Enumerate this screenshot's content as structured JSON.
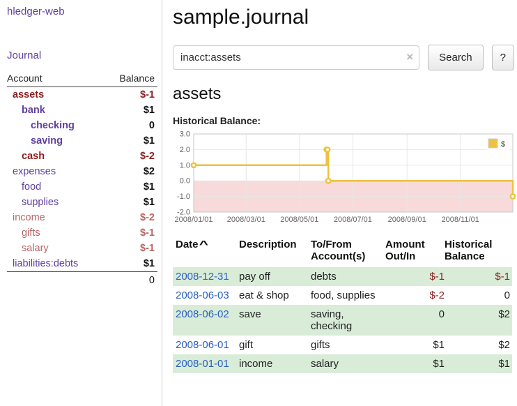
{
  "app": {
    "title": "hledger-web"
  },
  "header": {
    "title": "sample.journal"
  },
  "search": {
    "value": "inacct:assets",
    "clear_icon": "×",
    "button_label": "Search",
    "help_label": "?"
  },
  "account_page": {
    "title": "assets",
    "chart_label": "Historical Balance:"
  },
  "sidebar": {
    "journal_link": "Journal",
    "accounts_header": {
      "account": "Account",
      "balance": "Balance"
    },
    "accounts": [
      {
        "name": "assets",
        "balance": "$-1",
        "level": 0,
        "bold": true,
        "negative": true
      },
      {
        "name": "bank",
        "balance": "$1",
        "level": 1,
        "bold": true,
        "negative": false
      },
      {
        "name": "checking",
        "balance": "0",
        "level": 2,
        "bold": true,
        "negative": false
      },
      {
        "name": "saving",
        "balance": "$1",
        "level": 2,
        "bold": true,
        "negative": false
      },
      {
        "name": "cash",
        "balance": "$-2",
        "level": 1,
        "bold": true,
        "negative": true
      },
      {
        "name": "expenses",
        "balance": "$2",
        "level": 0,
        "bold": false,
        "negative": false
      },
      {
        "name": "food",
        "balance": "$1",
        "level": 1,
        "bold": false,
        "negative": false
      },
      {
        "name": "supplies",
        "balance": "$1",
        "level": 1,
        "bold": false,
        "negative": false
      },
      {
        "name": "income",
        "balance": "$-2",
        "level": 0,
        "bold": false,
        "negative": true
      },
      {
        "name": "gifts",
        "balance": "$-1",
        "level": 1,
        "bold": false,
        "negative": true
      },
      {
        "name": "salary",
        "balance": "$-1",
        "level": 1,
        "bold": false,
        "negative": true
      },
      {
        "name": "liabilities:debts",
        "balance": "$1",
        "level": 0,
        "bold": false,
        "negative": false
      }
    ],
    "total": "0"
  },
  "chart_data": {
    "type": "line",
    "step": true,
    "title": "Historical Balance",
    "xlabel": "",
    "ylabel": "",
    "ylim": [
      -2,
      3
    ],
    "yticks": [
      3,
      2,
      1,
      0,
      -1,
      -2
    ],
    "xticks": [
      "2008/01/01",
      "2008/03/01",
      "2008/05/01",
      "2008/07/01",
      "2008/09/01",
      "2008/11/01"
    ],
    "xrange": [
      "2008-01-01",
      "2008-12-31"
    ],
    "grid": true,
    "legend": {
      "position": "top-right",
      "label": "$"
    },
    "negative_region_color": "#f8dada",
    "series": [
      {
        "name": "$",
        "color": "#edc240",
        "points": [
          {
            "x": "2008-01-01",
            "y": 1
          },
          {
            "x": "2008-06-01",
            "y": 2
          },
          {
            "x": "2008-06-02",
            "y": 2
          },
          {
            "x": "2008-06-03",
            "y": 0
          },
          {
            "x": "2008-12-31",
            "y": -1
          }
        ]
      }
    ]
  },
  "register": {
    "columns": [
      "Date",
      "Description",
      "To/From Account(s)",
      "Amount Out/In",
      "Historical Balance"
    ],
    "sort_caret": "^",
    "rows": [
      {
        "date": "2008-12-31",
        "description": "pay off",
        "accounts": "debts",
        "amount": "$-1",
        "amount_negative": true,
        "balance": "$-1",
        "balance_negative": true
      },
      {
        "date": "2008-06-03",
        "description": "eat & shop",
        "accounts": "food, supplies",
        "amount": "$-2",
        "amount_negative": true,
        "balance": "0",
        "balance_negative": false
      },
      {
        "date": "2008-06-02",
        "description": "save",
        "accounts": "saving, checking",
        "amount": "0",
        "amount_negative": false,
        "balance": "$2",
        "balance_negative": false
      },
      {
        "date": "2008-06-01",
        "description": "gift",
        "accounts": "gifts",
        "amount": "$1",
        "amount_negative": false,
        "balance": "$2",
        "balance_negative": false
      },
      {
        "date": "2008-01-01",
        "description": "income",
        "accounts": "salary",
        "amount": "$1",
        "amount_negative": false,
        "balance": "$1",
        "balance_negative": false
      }
    ]
  },
  "colors": {
    "accent_purple": "#6040a0",
    "link_blue": "#2a5fc4",
    "negative_dark": "#8f1d1d",
    "negative_soft": "#b96666",
    "stripe_green": "#d8ecd8",
    "chart_series": "#edc240",
    "chart_negative_bg": "#f8dada"
  }
}
